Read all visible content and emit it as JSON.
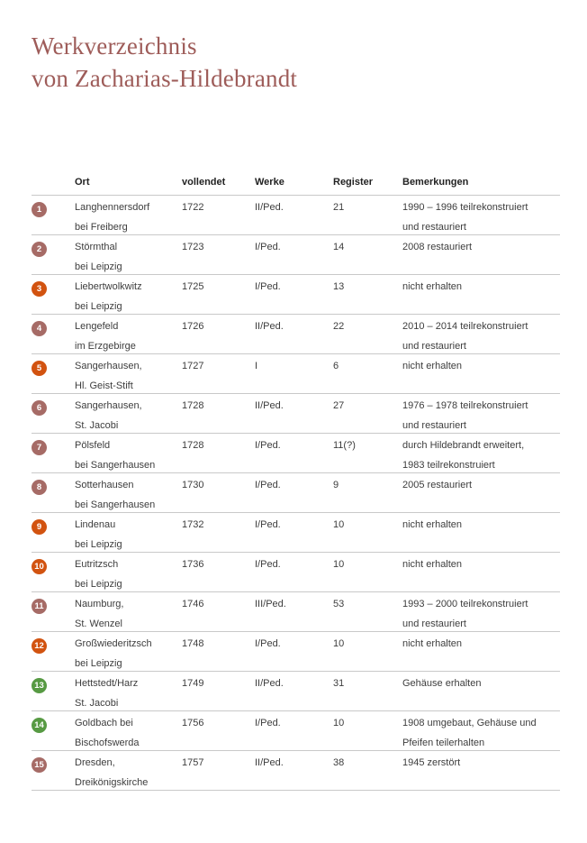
{
  "title": {
    "line1": "Werkverzeichnis",
    "line2": "von Zacharias-Hildebrandt",
    "color": "#9e5c59"
  },
  "table": {
    "headers": [
      "Ort",
      "vollendet",
      "Werke",
      "Register",
      "Bemerkungen"
    ],
    "badge_colors": {
      "rose": "#a66b66",
      "orange": "#d25310",
      "green": "#579a43"
    },
    "rows": [
      {
        "num": "1",
        "badge": "rose",
        "ort": [
          "Langhennersdorf",
          "bei Freiberg"
        ],
        "vollendet": "1722",
        "werke": "II/Ped.",
        "register": "21",
        "bemerkungen": [
          "1990 – 1996 teilrekonstruiert",
          "und restauriert"
        ]
      },
      {
        "num": "2",
        "badge": "rose",
        "ort": [
          "Störmthal",
          "bei Leipzig"
        ],
        "vollendet": "1723",
        "werke": "I/Ped.",
        "register": "14",
        "bemerkungen": [
          "2008 restauriert"
        ]
      },
      {
        "num": "3",
        "badge": "orange",
        "ort": [
          "Liebertwolkwitz",
          "bei Leipzig"
        ],
        "vollendet": "1725",
        "werke": "I/Ped.",
        "register": "13",
        "bemerkungen": [
          "nicht erhalten"
        ]
      },
      {
        "num": "4",
        "badge": "rose",
        "ort": [
          "Lengefeld",
          "im Erzgebirge"
        ],
        "vollendet": "1726",
        "werke": "II/Ped.",
        "register": "22",
        "bemerkungen": [
          "2010 – 2014 teilrekonstruiert",
          "und restauriert"
        ]
      },
      {
        "num": "5",
        "badge": "orange",
        "ort": [
          "Sangerhausen,",
          "Hl. Geist-Stift"
        ],
        "vollendet": "1727",
        "werke": "I",
        "register": "6",
        "bemerkungen": [
          "nicht erhalten"
        ]
      },
      {
        "num": "6",
        "badge": "rose",
        "ort": [
          "Sangerhausen,",
          "St. Jacobi"
        ],
        "vollendet": "1728",
        "werke": "II/Ped.",
        "register": "27",
        "bemerkungen": [
          "1976 – 1978 teilrekonstruiert",
          "und restauriert"
        ]
      },
      {
        "num": "7",
        "badge": "rose",
        "ort": [
          "Pölsfeld",
          "bei Sangerhausen"
        ],
        "vollendet": "1728",
        "werke": "I/Ped.",
        "register": "11(?)",
        "bemerkungen": [
          "durch Hildebrandt erweitert,",
          "1983 teilrekonstruiert"
        ]
      },
      {
        "num": "8",
        "badge": "rose",
        "ort": [
          "Sotterhausen",
          "bei Sangerhausen"
        ],
        "vollendet": "1730",
        "werke": "I/Ped.",
        "register": "9",
        "bemerkungen": [
          "2005 restauriert"
        ]
      },
      {
        "num": "9",
        "badge": "orange",
        "ort": [
          "Lindenau",
          "bei Leipzig"
        ],
        "vollendet": "1732",
        "werke": "I/Ped.",
        "register": "10",
        "bemerkungen": [
          "nicht erhalten"
        ]
      },
      {
        "num": "10",
        "badge": "orange",
        "ort": [
          "Eutritzsch",
          "bei Leipzig"
        ],
        "vollendet": "1736",
        "werke": "I/Ped.",
        "register": "10",
        "bemerkungen": [
          "nicht erhalten"
        ]
      },
      {
        "num": "11",
        "badge": "rose",
        "ort": [
          "Naumburg,",
          "St. Wenzel"
        ],
        "vollendet": "1746",
        "werke": "III/Ped.",
        "register": "53",
        "bemerkungen": [
          "1993 – 2000 teilrekonstruiert",
          "und restauriert"
        ]
      },
      {
        "num": "12",
        "badge": "orange",
        "ort": [
          "Großwiederitzsch",
          "bei Leipzig"
        ],
        "vollendet": "1748",
        "werke": "I/Ped.",
        "register": "10",
        "bemerkungen": [
          "nicht erhalten"
        ]
      },
      {
        "num": "13",
        "badge": "green",
        "ort": [
          "Hettstedt/Harz",
          "St. Jacobi"
        ],
        "vollendet": "1749",
        "werke": "II/Ped.",
        "register": "31",
        "bemerkungen": [
          "Gehäuse erhalten"
        ]
      },
      {
        "num": "14",
        "badge": "green",
        "ort": [
          "Goldbach bei",
          "Bischofswerda"
        ],
        "vollendet": "1756",
        "werke": "I/Ped.",
        "register": "10",
        "bemerkungen": [
          "1908 umgebaut, Gehäuse und",
          "Pfeifen teilerhalten"
        ]
      },
      {
        "num": "15",
        "badge": "rose",
        "ort": [
          "Dresden,",
          "Dreikönigskirche"
        ],
        "vollendet": "1757",
        "werke": "II/Ped.",
        "register": "38",
        "bemerkungen": [
          "1945 zerstört"
        ]
      }
    ]
  }
}
